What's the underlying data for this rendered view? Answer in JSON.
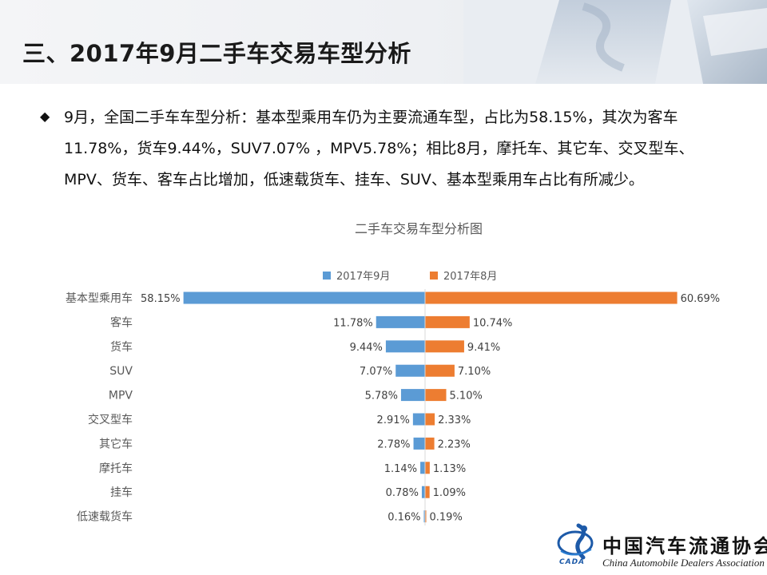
{
  "slide": {
    "title": "三、2017年9月二手车交易车型分析",
    "bullet_icon": "diamond-bullet-icon",
    "bullet_text": "9月，全国二手车车型分析：基本型乘用车仍为主要流通车型，占比为58.15%，其次为客车11.78%，货车9.44%，SUV7.07% ，MPV5.78%；相比8月，摩托车、其它车、交叉型车、 MPV、货车、客车占比增加，低速载货车、挂车、SUV、基本型乘用车占比有所减少。"
  },
  "logo": {
    "name_cn": "中国汽车流通协会",
    "name_en": "China Automobile Dealers Association",
    "abbr": "CADA",
    "icon": "cada-logo-icon"
  },
  "chart_data": {
    "type": "bar",
    "orientation": "horizontal-butterfly",
    "title": "二手车交易车型分析图",
    "categories": [
      "基本型乘用车",
      "客车",
      "货车",
      "SUV",
      "MPV",
      "交叉型车",
      "其它车",
      "摩托车",
      "挂车",
      "低速载货车"
    ],
    "series": [
      {
        "name": "2017年9月",
        "color": "#5b9bd5",
        "values": [
          58.15,
          11.78,
          9.44,
          7.07,
          5.78,
          2.91,
          2.78,
          1.14,
          0.78,
          0.16
        ],
        "labels": [
          "58.15%",
          "11.78%",
          "9.44%",
          "7.07%",
          "5.78%",
          "2.91%",
          "2.78%",
          "1.14%",
          "0.78%",
          "0.16%"
        ]
      },
      {
        "name": "2017年8月",
        "color": "#ed7d31",
        "values": [
          60.69,
          10.74,
          9.41,
          7.1,
          5.1,
          2.33,
          2.23,
          1.13,
          1.09,
          0.19
        ],
        "labels": [
          "60.69%",
          "10.74%",
          "9.41%",
          "7.10%",
          "5.10%",
          "2.33%",
          "2.23%",
          "1.13%",
          "1.09%",
          "0.19%"
        ]
      }
    ],
    "legend": "top",
    "grid": false
  }
}
